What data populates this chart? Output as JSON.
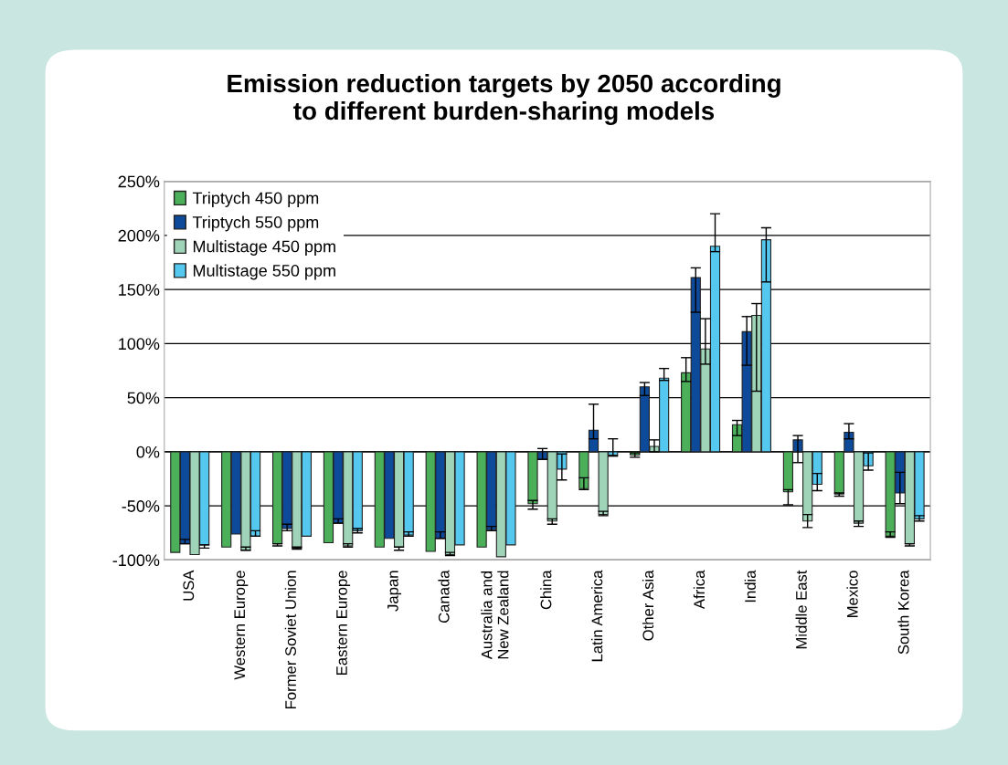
{
  "chart_data": {
    "type": "bar",
    "title": "Emission reduction targets by 2050 according\nto different burden-sharing models",
    "categories": [
      "USA",
      "Western Europe",
      "Former Soviet Union",
      "Eastern Europe",
      "Japan",
      "Canada",
      "Australia and\nNew Zealand",
      "China",
      "Latin America",
      "Other Asia",
      "Africa",
      "India",
      "Middle East",
      "Mexico",
      "South Korea"
    ],
    "series": [
      {
        "name": "Triptych 450 ppm",
        "color": "#4cb05a",
        "values": [
          -93,
          -88,
          -85,
          -84,
          -88,
          -92,
          -88,
          -48,
          -34,
          -3,
          73,
          25,
          -37,
          -39,
          -78
        ],
        "errors": [
          null,
          null,
          [
            -87,
            -85
          ],
          null,
          null,
          null,
          null,
          [
            -53,
            -45
          ],
          [
            -35,
            -24
          ],
          [
            -5,
            -1
          ],
          [
            65,
            87
          ],
          [
            15,
            29
          ],
          [
            -49,
            -35
          ],
          [
            -41,
            -38
          ],
          [
            -79,
            -74
          ]
        ]
      },
      {
        "name": "Triptych 550 ppm",
        "color": "#0d4a9a",
        "values": [
          -85,
          -76,
          -71,
          -66,
          -80,
          -80,
          -72,
          -7,
          20,
          60,
          161,
          111,
          11,
          18,
          -38
        ],
        "errors": [
          [
            -85,
            -81
          ],
          null,
          [
            -73,
            -67
          ],
          [
            -66,
            -62
          ],
          null,
          [
            -80,
            -74
          ],
          [
            -73,
            -69
          ],
          [
            -7,
            3
          ],
          [
            12,
            44
          ],
          [
            52,
            64
          ],
          [
            129,
            170
          ],
          [
            80,
            125
          ],
          [
            -10,
            15
          ],
          [
            12,
            26
          ],
          [
            -48,
            -19
          ]
        ]
      },
      {
        "name": "Multistage 450 ppm",
        "color": "#9fd4b8",
        "values": [
          -95,
          -91,
          -89,
          -87,
          -88,
          -95,
          -97,
          -64,
          -58,
          5,
          95,
          126,
          -64,
          -66,
          -85
        ],
        "errors": [
          null,
          [
            -91,
            -88
          ],
          [
            -90,
            -88
          ],
          [
            -88,
            -85
          ],
          [
            -91,
            -88
          ],
          [
            -96,
            -93
          ],
          null,
          [
            -67,
            -62
          ],
          [
            -59,
            -55
          ],
          [
            0,
            11
          ],
          [
            81,
            123
          ],
          [
            56,
            137
          ],
          [
            -70,
            -58
          ],
          [
            -69,
            -64
          ],
          [
            -87,
            -85
          ]
        ]
      },
      {
        "name": "Multistage 550 ppm",
        "color": "#55c8f0",
        "values": [
          -86,
          -78,
          -78,
          -73,
          -77,
          -86,
          -86,
          -16,
          -3,
          68,
          190,
          196,
          -30,
          -13,
          -62
        ],
        "errors": [
          [
            -89,
            -86
          ],
          [
            -78,
            -73
          ],
          null,
          [
            -75,
            -71
          ],
          [
            -78,
            -74
          ],
          null,
          null,
          [
            -26,
            -2
          ],
          [
            -4,
            12
          ],
          [
            66,
            77
          ],
          [
            185,
            220
          ],
          [
            157,
            207
          ],
          [
            -36,
            -20
          ],
          [
            -17,
            -1
          ],
          [
            -64,
            -59
          ]
        ]
      }
    ],
    "ylim": [
      -100,
      250
    ],
    "yticks": [
      {
        "value": -100,
        "label": "-100%"
      },
      {
        "value": -50,
        "label": "-50%"
      },
      {
        "value": 0,
        "label": "0%"
      },
      {
        "value": 50,
        "label": "50%"
      },
      {
        "value": 100,
        "label": "100%"
      },
      {
        "value": 150,
        "label": "150%"
      },
      {
        "value": 200,
        "label": "200%"
      },
      {
        "value": 250,
        "label": "250%"
      }
    ],
    "grid": "y",
    "legend": "top left"
  }
}
